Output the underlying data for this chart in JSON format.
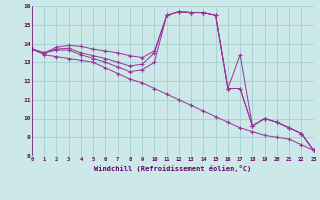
{
  "xlabel": "Windchill (Refroidissement éolien,°C)",
  "xlim": [
    0,
    23
  ],
  "ylim": [
    8,
    16
  ],
  "yticks": [
    8,
    9,
    10,
    11,
    12,
    13,
    14,
    15,
    16
  ],
  "xticks": [
    0,
    1,
    2,
    3,
    4,
    5,
    6,
    7,
    8,
    9,
    10,
    11,
    12,
    13,
    14,
    15,
    16,
    17,
    18,
    19,
    20,
    21,
    22,
    23
  ],
  "bg_color": "#cce8e8",
  "line_color": "#993399",
  "grid_color": "#99cccc",
  "series1_x": [
    0,
    1,
    2,
    3,
    4,
    5,
    6,
    7,
    8,
    9,
    10,
    11,
    12,
    13,
    14,
    15,
    16,
    17,
    18,
    19,
    20,
    21,
    22,
    23
  ],
  "series1_y": [
    13.7,
    13.5,
    13.8,
    13.9,
    13.85,
    13.7,
    13.6,
    13.5,
    13.35,
    13.25,
    13.6,
    15.5,
    15.7,
    15.65,
    15.65,
    15.5,
    11.6,
    13.4,
    9.6,
    10.0,
    9.8,
    9.5,
    9.2,
    8.3
  ],
  "series2_x": [
    0,
    1,
    2,
    3,
    4,
    5,
    6,
    7,
    8,
    9,
    10,
    11,
    12,
    13,
    14,
    15,
    16,
    17,
    18,
    19,
    20,
    21,
    22,
    23
  ],
  "series2_y": [
    13.7,
    13.5,
    13.7,
    13.75,
    13.5,
    13.35,
    13.2,
    13.0,
    12.8,
    12.9,
    13.5,
    15.5,
    15.7,
    15.65,
    15.65,
    15.5,
    11.6,
    11.6,
    9.6,
    10.0,
    9.8,
    9.5,
    9.2,
    8.3
  ],
  "series3_x": [
    0,
    1,
    2,
    3,
    4,
    5,
    6,
    7,
    8,
    9,
    10,
    11,
    12,
    13,
    14,
    15,
    16,
    17,
    18,
    19,
    20,
    21,
    22,
    23
  ],
  "series3_y": [
    13.7,
    13.5,
    13.65,
    13.65,
    13.4,
    13.2,
    13.0,
    12.75,
    12.5,
    12.6,
    13.0,
    15.5,
    15.7,
    15.65,
    15.65,
    15.5,
    11.6,
    11.6,
    9.6,
    10.0,
    9.8,
    9.5,
    9.2,
    8.3
  ],
  "series4_x": [
    0,
    1,
    2,
    3,
    4,
    5,
    6,
    7,
    8,
    9,
    10,
    11,
    12,
    13,
    14,
    15,
    16,
    17,
    18,
    19,
    20,
    21,
    22,
    23
  ],
  "series4_y": [
    13.7,
    13.4,
    13.3,
    13.2,
    13.1,
    13.0,
    12.7,
    12.4,
    12.1,
    11.9,
    11.6,
    11.3,
    11.0,
    10.7,
    10.4,
    10.1,
    9.8,
    9.5,
    9.3,
    9.1,
    9.0,
    8.9,
    8.6,
    8.3
  ]
}
